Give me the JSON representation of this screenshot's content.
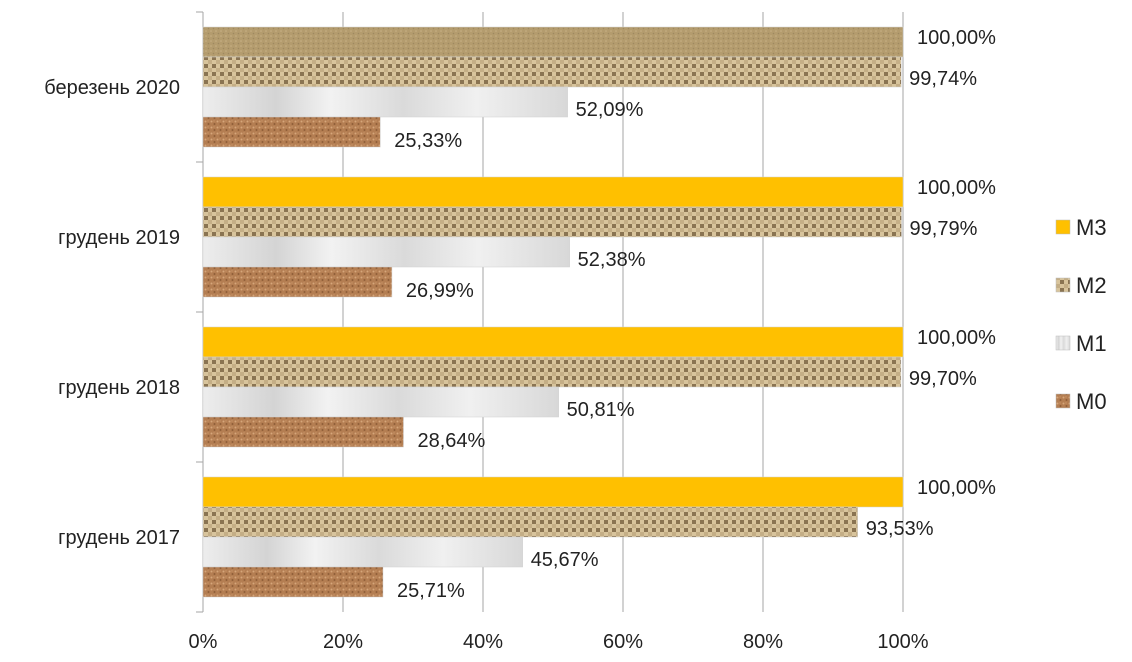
{
  "chart_data": {
    "type": "bar",
    "orientation": "horizontal",
    "categories": [
      "березень 2020",
      "грудень 2019",
      "грудень 2018",
      "грудень 2017"
    ],
    "series": [
      {
        "name": "M3",
        "values": [
          100.0,
          100.0,
          100.0,
          100.0
        ],
        "labels": [
          "100,00%",
          "100,00%",
          "100,00%",
          "100,00%"
        ]
      },
      {
        "name": "M2",
        "values": [
          99.74,
          99.79,
          99.7,
          93.53
        ],
        "labels": [
          "99,74%",
          "99,79%",
          "99,70%",
          "93,53%"
        ]
      },
      {
        "name": "M1",
        "values": [
          52.09,
          52.38,
          50.81,
          45.67
        ],
        "labels": [
          "52,09%",
          "52,38%",
          "50,81%",
          "45,67%"
        ]
      },
      {
        "name": "M0",
        "values": [
          25.33,
          26.99,
          28.64,
          25.71
        ],
        "labels": [
          "25,33%",
          "26,99%",
          "28,64%",
          "25,71%"
        ]
      }
    ],
    "xlim": [
      0,
      100
    ],
    "xticks": [
      0,
      20,
      40,
      60,
      80,
      100
    ],
    "xtick_labels": [
      "0%",
      "20%",
      "40%",
      "60%",
      "80%",
      "100%"
    ],
    "grid": "vertical",
    "legend_position": "right",
    "legend_order": [
      "M3",
      "M2",
      "M1",
      "M0"
    ],
    "colors": {
      "M3": "#FFC000",
      "M3_first_category": "#B8A070",
      "M2": "#B09A72",
      "M1": "#E4E4E4",
      "M0": "#B8845A",
      "grid": "#A6A6A6"
    },
    "fill_styles": {
      "M3": "solid",
      "M2": "woven-texture",
      "M1": "marble-texture",
      "M0": "cork-texture"
    }
  }
}
